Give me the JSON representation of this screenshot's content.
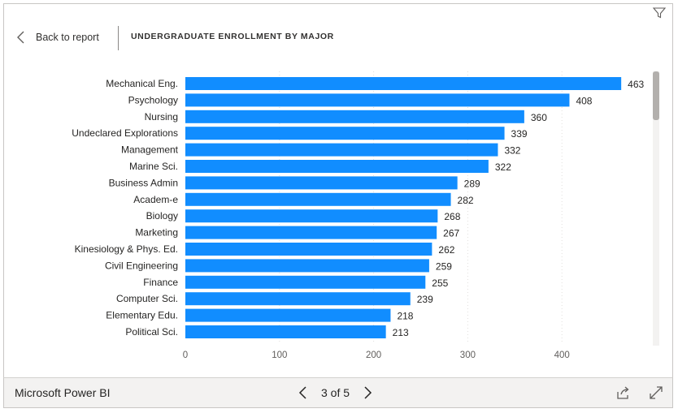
{
  "header": {
    "back_label": "Back to report",
    "title": "UNDERGRADUATE ENROLLMENT BY MAJOR"
  },
  "footer": {
    "brand": "Microsoft Power BI",
    "page_indicator": "3 of 5"
  },
  "icons": {
    "filter": "filter-icon",
    "back": "chevron-left-icon",
    "prev": "chevron-left-icon",
    "next": "chevron-right-icon",
    "share": "share-icon",
    "expand": "expand-icon"
  },
  "colors": {
    "bar": "#118dff",
    "gridline": "#e1dfdd"
  },
  "chart_data": {
    "type": "bar",
    "orientation": "horizontal",
    "title": "UNDERGRADUATE ENROLLMENT BY MAJOR",
    "categories": [
      "Mechanical Eng.",
      "Psychology",
      "Nursing",
      "Undeclared Explorations",
      "Management",
      "Marine Sci.",
      "Business Admin",
      "Academ-e",
      "Biology",
      "Marketing",
      "Kinesiology & Phys. Ed.",
      "Civil Engineering",
      "Finance",
      "Computer Sci.",
      "Elementary Edu.",
      "Political Sci."
    ],
    "values": [
      463,
      408,
      360,
      339,
      332,
      322,
      289,
      282,
      268,
      267,
      262,
      259,
      255,
      239,
      218,
      213
    ],
    "xticks": [
      "0",
      "100",
      "200",
      "300",
      "400"
    ],
    "xlim": [
      0,
      463
    ],
    "grid": true,
    "data_labels": true
  }
}
